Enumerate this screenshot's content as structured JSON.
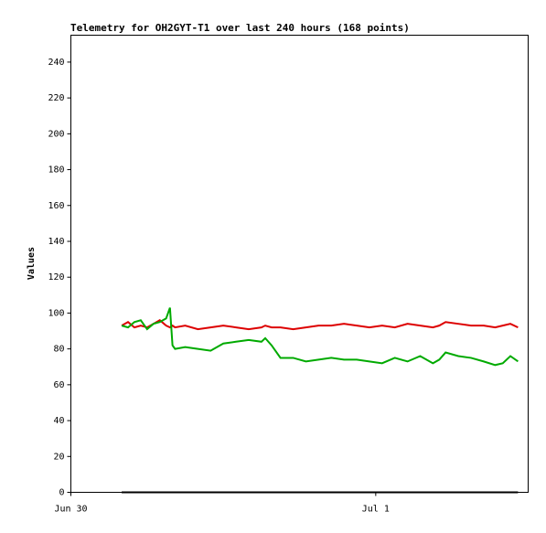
{
  "chart_data": {
    "type": "line",
    "title": "Telemetry for OH2GYT-T1 over last 240 hours (168 points)",
    "y_label": "Values",
    "x": [
      4.0,
      4.5,
      5.0,
      5.5,
      6.0,
      6.5,
      7.0,
      7.5,
      7.8,
      8.0,
      8.2,
      9,
      10,
      11,
      12,
      13,
      14,
      15,
      15.3,
      15.8,
      16.5,
      17.5,
      18.5,
      19.5,
      20.5,
      21.5,
      22.5,
      23.5,
      24.5,
      25.5,
      26.5,
      27.5,
      28.5,
      29.0,
      29.5,
      30.5,
      31.5,
      32.5,
      33.4,
      34.0,
      34.6,
      35.2
    ],
    "series": [
      {
        "color": "#dd0000",
        "values": [
          93,
          95,
          92,
          93,
          92,
          94,
          96,
          93,
          92,
          93,
          92,
          93,
          91,
          92,
          93,
          92,
          91,
          92,
          93,
          92,
          92,
          91,
          92,
          93,
          93,
          94,
          93,
          92,
          93,
          92,
          94,
          93,
          92,
          93,
          95,
          94,
          93,
          93,
          92,
          93,
          94,
          92
        ]
      },
      {
        "color": "#00aa00",
        "values": [
          93,
          92,
          95,
          96,
          91,
          94,
          95,
          97,
          103,
          82,
          80,
          81,
          80,
          79,
          83,
          84,
          85,
          84,
          86,
          82,
          75,
          75,
          73,
          74,
          75,
          74,
          74,
          73,
          72,
          75,
          73,
          76,
          72,
          74,
          78,
          76,
          75,
          73,
          71,
          72,
          76,
          73
        ]
      },
      {
        "color": "#000000",
        "values": [
          0,
          0,
          0,
          0,
          0,
          0,
          0,
          0,
          0,
          0,
          0,
          0,
          0,
          0,
          0,
          0,
          0,
          0,
          0,
          0,
          0,
          0,
          0,
          0,
          0,
          0,
          0,
          0,
          0,
          0,
          0,
          0,
          0,
          0,
          0,
          0,
          0,
          0,
          0,
          0,
          0,
          0
        ]
      }
    ],
    "xlim": [
      0,
      36
    ],
    "xticks": [
      {
        "value": 0,
        "label": "Jun 30"
      },
      {
        "value": 24,
        "label": "Jul 1"
      }
    ],
    "ylim": [
      0,
      255
    ],
    "yticks": [
      0,
      20,
      40,
      60,
      80,
      100,
      120,
      140,
      160,
      180,
      200,
      220,
      240
    ]
  }
}
